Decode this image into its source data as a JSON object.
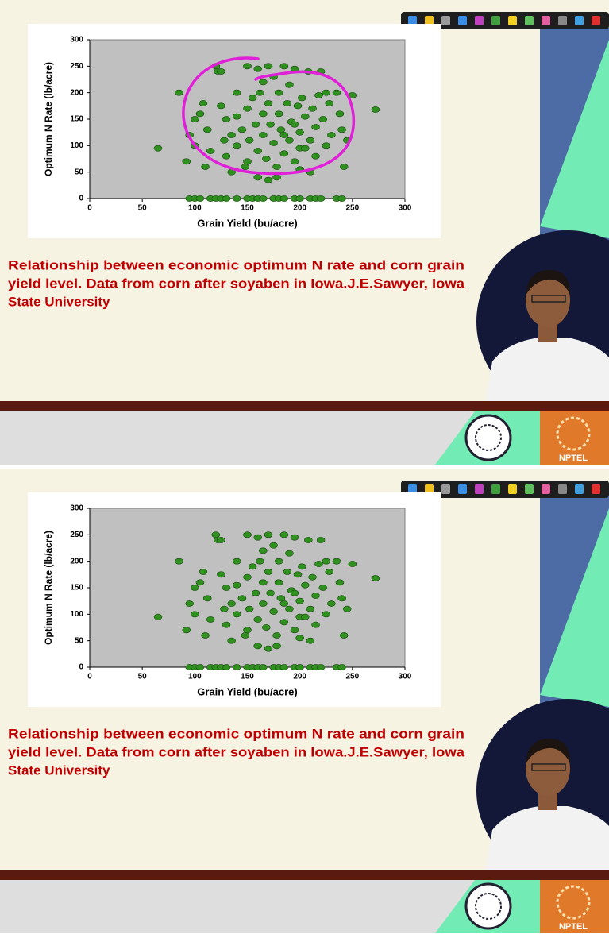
{
  "chart_data": [
    {
      "type": "scatter",
      "xlabel": "Grain Yield (bu/acre)",
      "ylabel": "Optimum N Rate (lb/acre)",
      "xlim": [
        0,
        300
      ],
      "ylim": [
        0,
        300
      ],
      "xticks": [
        0,
        50,
        100,
        150,
        200,
        250,
        300
      ],
      "yticks": [
        0,
        50,
        100,
        150,
        200,
        250,
        300
      ],
      "series": [
        {
          "color": "#2f8f1f",
          "x": [
            65,
            85,
            92,
            95,
            100,
            100,
            105,
            108,
            110,
            112,
            115,
            120,
            122,
            125,
            125,
            128,
            130,
            130,
            135,
            140,
            140,
            145,
            148,
            150,
            150,
            152,
            155,
            158,
            160,
            160,
            162,
            165,
            165,
            168,
            170,
            170,
            172,
            175,
            175,
            178,
            180,
            180,
            182,
            185,
            185,
            188,
            190,
            190,
            192,
            195,
            195,
            198,
            200,
            200,
            202,
            205,
            208,
            210,
            212,
            215,
            215,
            218,
            220,
            222,
            225,
            228,
            230,
            235,
            238,
            240,
            242,
            245,
            250,
            272,
            160,
            170,
            178,
            150,
            200,
            210,
            140,
            165,
            185,
            195,
            205,
            225,
            135,
            95,
            100,
            105,
            115,
            120,
            125,
            130,
            140,
            150,
            155,
            160,
            165,
            175,
            180,
            185,
            195,
            200,
            210,
            215,
            220,
            235,
            240
          ],
          "values": [
            95,
            200,
            70,
            120,
            150,
            100,
            160,
            180,
            60,
            130,
            90,
            250,
            240,
            240,
            175,
            110,
            150,
            80,
            50,
            200,
            100,
            130,
            60,
            250,
            170,
            110,
            190,
            140,
            90,
            245,
            200,
            160,
            120,
            75,
            250,
            180,
            140,
            105,
            230,
            60,
            200,
            160,
            130,
            85,
            250,
            180,
            215,
            110,
            145,
            70,
            245,
            175,
            125,
            95,
            190,
            155,
            240,
            110,
            170,
            80,
            135,
            195,
            240,
            150,
            100,
            180,
            120,
            200,
            160,
            130,
            60,
            110,
            195,
            168,
            40,
            35,
            40,
            70,
            55,
            50,
            155,
            220,
            120,
            140,
            95,
            200,
            120,
            0,
            0,
            0,
            0,
            0,
            0,
            0,
            0,
            0,
            0,
            0,
            0,
            0,
            0,
            0,
            0,
            0,
            0,
            0,
            0,
            0,
            0
          ]
        }
      ]
    },
    {
      "type": "scatter",
      "xlabel": "Grain Yield (bu/acre)",
      "ylabel": "Optimum N Rate (lb/acre)",
      "xlim": [
        0,
        300
      ],
      "ylim": [
        0,
        300
      ],
      "xticks": [
        0,
        50,
        100,
        150,
        200,
        250,
        300
      ],
      "yticks": [
        0,
        50,
        100,
        150,
        200,
        250,
        300
      ],
      "series": [
        {
          "color": "#2f8f1f",
          "x": [
            65,
            85,
            92,
            95,
            100,
            100,
            105,
            108,
            110,
            112,
            115,
            120,
            122,
            125,
            125,
            128,
            130,
            130,
            135,
            140,
            140,
            145,
            148,
            150,
            150,
            152,
            155,
            158,
            160,
            160,
            162,
            165,
            165,
            168,
            170,
            170,
            172,
            175,
            175,
            178,
            180,
            180,
            182,
            185,
            185,
            188,
            190,
            190,
            192,
            195,
            195,
            198,
            200,
            200,
            202,
            205,
            208,
            210,
            212,
            215,
            215,
            218,
            220,
            222,
            225,
            228,
            230,
            235,
            238,
            240,
            242,
            245,
            250,
            272,
            160,
            170,
            178,
            150,
            200,
            210,
            140,
            165,
            185,
            195,
            205,
            225,
            135,
            95,
            100,
            105,
            115,
            120,
            125,
            130,
            140,
            150,
            155,
            160,
            165,
            175,
            180,
            185,
            195,
            200,
            210,
            215,
            220,
            235,
            240
          ],
          "values": [
            95,
            200,
            70,
            120,
            150,
            100,
            160,
            180,
            60,
            130,
            90,
            250,
            240,
            240,
            175,
            110,
            150,
            80,
            50,
            200,
            100,
            130,
            60,
            250,
            170,
            110,
            190,
            140,
            90,
            245,
            200,
            160,
            120,
            75,
            250,
            180,
            140,
            105,
            230,
            60,
            200,
            160,
            130,
            85,
            250,
            180,
            215,
            110,
            145,
            70,
            245,
            175,
            125,
            95,
            190,
            155,
            240,
            110,
            170,
            80,
            135,
            195,
            240,
            150,
            100,
            180,
            120,
            200,
            160,
            130,
            60,
            110,
            195,
            168,
            40,
            35,
            40,
            70,
            55,
            50,
            155,
            220,
            120,
            140,
            95,
            200,
            120,
            0,
            0,
            0,
            0,
            0,
            0,
            0,
            0,
            0,
            0,
            0,
            0,
            0,
            0,
            0,
            0,
            0,
            0,
            0,
            0,
            0,
            0
          ]
        }
      ]
    }
  ],
  "slides": [
    {
      "caption": [
        "Relationship between economic optimum N rate and corn grain",
        "yield level. Data from corn after soyaben in Iowa.J.E.Sawyer, Iowa",
        "State University"
      ],
      "logo": "NPTEL"
    },
    {
      "caption": [
        "Relationship between economic optimum N rate and corn grain",
        "yield level. Data from corn after soyaben in Iowa.J.E.Sawyer, Iowa",
        "State University"
      ],
      "logo": "NPTEL"
    }
  ]
}
